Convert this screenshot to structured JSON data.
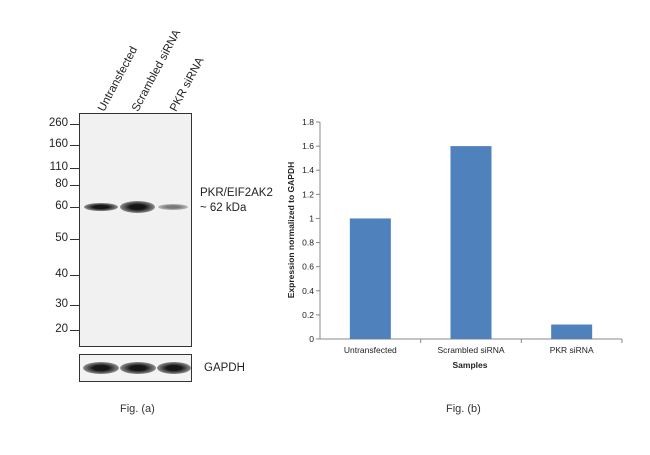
{
  "panel_a": {
    "lanes": [
      "Untransfected",
      "Scrambled siRNA",
      "PKR siRNA"
    ],
    "markers": [
      "260",
      "160",
      "110",
      "80",
      "60",
      "50",
      "40",
      "30",
      "20"
    ],
    "target_label_line1": "PKR/EIF2AK2",
    "target_label_line2": "~ 62 kDa",
    "loading_control_label": "GAPDH",
    "caption": "Fig. (a)"
  },
  "panel_b": {
    "caption": "Fig. (b)"
  },
  "chart_data": {
    "type": "bar",
    "categories": [
      "Untransfected",
      "Scrambled siRNA",
      "PKR siRNA"
    ],
    "values": [
      1.0,
      1.6,
      0.12
    ],
    "title": "",
    "xlabel": "Samples",
    "ylabel": "Expression  normalized to GAPDH",
    "ylim": [
      0,
      1.8
    ],
    "yticks": [
      "0",
      "0.2",
      "0.4",
      "0.6",
      "0.8",
      "1",
      "1.2",
      "1.4",
      "1.6",
      "1.8"
    ],
    "grid": false,
    "bar_color": "#4f81bd"
  }
}
